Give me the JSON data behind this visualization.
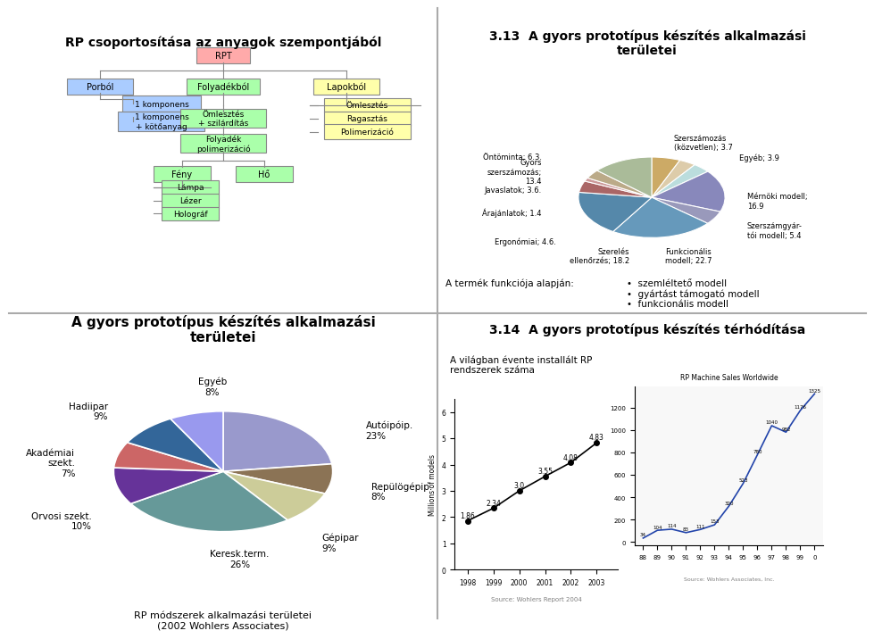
{
  "background_color": "#f0f0f0",
  "divider_color": "#888888",
  "pie_title": "A gyors prototípus készítés alkalmazási\nterületei",
  "pie_subtitle": "RP módszerek alkalmazási területei\n(2002 Wohlers Associates)",
  "pie_slices": [
    {
      "label": "Autóipóip.\n23%",
      "value": 23,
      "color": "#9999CC"
    },
    {
      "label": "Repülögépip.\n8%",
      "value": 8,
      "color": "#8B7355"
    },
    {
      "label": "Gépipar\n9%",
      "value": 9,
      "color": "#CCCC99"
    },
    {
      "label": "Keresk.term.\n26%",
      "value": 26,
      "color": "#669999"
    },
    {
      "label": "Orvosi szekt.\n10%",
      "value": 10,
      "color": "#663399"
    },
    {
      "label": "Akadémiai\nszekt.\n7%",
      "value": 7,
      "color": "#CC6666"
    },
    {
      "label": "Hadiipar\n9%",
      "value": 9,
      "color": "#336699"
    },
    {
      "label": "Egyéb\n8%",
      "value": 8,
      "color": "#9999EE"
    }
  ],
  "pie_startangle": 90,
  "pie_label_fontsize": 7.5,
  "pie_title_fontsize": 11,
  "pie_subtitle_fontsize": 8
}
